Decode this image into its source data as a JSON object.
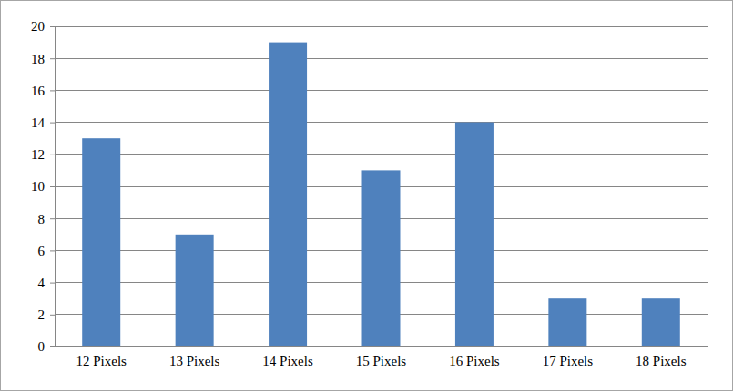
{
  "chart_data": {
    "type": "bar",
    "categories": [
      "12 Pixels",
      "13 Pixels",
      "14 Pixels",
      "15 Pixels",
      "16 Pixels",
      "17 Pixels",
      "18 Pixels"
    ],
    "values": [
      13,
      7,
      19,
      11,
      14,
      3,
      3
    ],
    "color": "#4f81bd",
    "ylim": [
      0,
      20
    ],
    "yticks": [
      0,
      2,
      4,
      6,
      8,
      10,
      12,
      14,
      16,
      18,
      20
    ],
    "grid": true
  }
}
